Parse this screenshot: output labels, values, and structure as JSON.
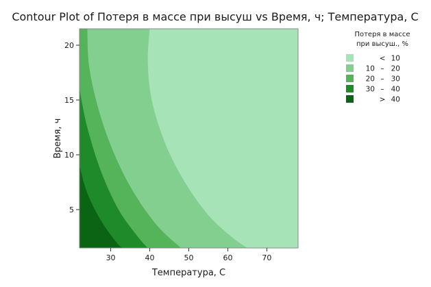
{
  "chart_data": {
    "type": "contour",
    "title": "Contour Plot of Потеря в массе при высуш vs Время, ч; Температура, C",
    "xlabel": "Температура, C",
    "ylabel": "Время, ч",
    "xlim": [
      22,
      78
    ],
    "ylim": [
      1.5,
      21.5
    ],
    "xticks": [
      30,
      40,
      50,
      60,
      70
    ],
    "yticks": [
      5,
      10,
      15,
      20
    ],
    "grid": false,
    "legend_position": "right",
    "legend": {
      "title_lines": [
        "Потеря в массе",
        "при высуш., %"
      ],
      "entries": [
        {
          "op": "<",
          "lo": "",
          "hi": "10",
          "color": "#a6e3b7"
        },
        {
          "op": "–",
          "lo": "10",
          "hi": "20",
          "color": "#82cf8f"
        },
        {
          "op": "–",
          "lo": "20",
          "hi": "30",
          "color": "#55b35a"
        },
        {
          "op": "–",
          "lo": "30",
          "hi": "40",
          "color": "#1f8a2a"
        },
        {
          "op": ">",
          "lo": "",
          "hi": "40",
          "color": "#0b6414"
        }
      ]
    },
    "contour_boundaries": [
      {
        "level": 10,
        "points": [
          [
            40,
            21.5
          ],
          [
            39.5,
            18.5
          ],
          [
            40.5,
            15
          ],
          [
            44,
            11
          ],
          [
            49,
            7.5
          ],
          [
            55,
            4.5
          ],
          [
            61,
            2.5
          ],
          [
            65,
            1.5
          ]
        ]
      },
      {
        "level": 20,
        "points": [
          [
            24,
            21.5
          ],
          [
            24.5,
            18
          ],
          [
            27,
            14
          ],
          [
            31,
            10
          ],
          [
            36,
            6.5
          ],
          [
            42,
            3.5
          ],
          [
            48,
            1.5
          ]
        ]
      },
      {
        "level": 30,
        "points": [
          [
            22,
            16
          ],
          [
            24,
            12.5
          ],
          [
            27.5,
            8.5
          ],
          [
            32,
            5
          ],
          [
            37,
            2.5
          ],
          [
            39.5,
            1.5
          ]
        ]
      },
      {
        "level": 40,
        "points": [
          [
            22,
            9
          ],
          [
            24,
            6.5
          ],
          [
            27.5,
            4
          ],
          [
            31.5,
            2
          ],
          [
            33,
            1.5
          ]
        ]
      }
    ]
  }
}
